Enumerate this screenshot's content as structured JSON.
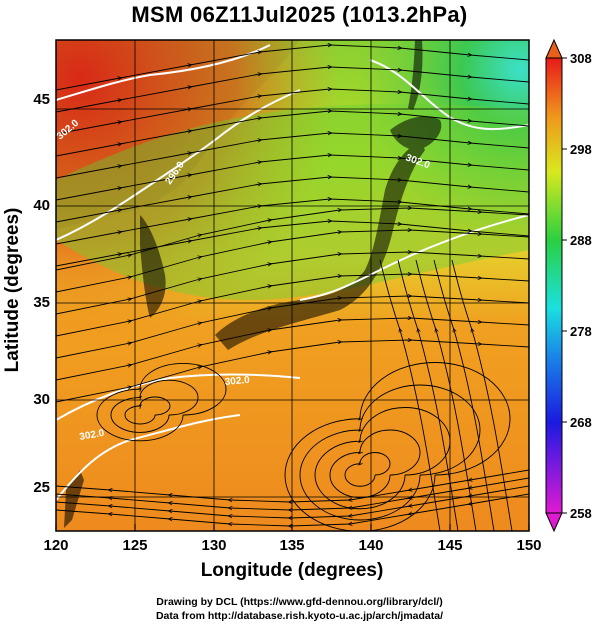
{
  "title": "MSM 06Z11Jul2025 (1013.2hPa)",
  "x_axis": {
    "label": "Longitude (degrees)",
    "ticks": [
      "120",
      "125",
      "130",
      "135",
      "140",
      "145",
      "150"
    ],
    "range": [
      120,
      150
    ]
  },
  "y_axis": {
    "label": "Latitude  (degrees)",
    "ticks": [
      "25",
      "30",
      "35",
      "40",
      "45"
    ],
    "range": [
      22.5,
      48
    ]
  },
  "colorbar": {
    "ticks": [
      "308",
      "298",
      "288",
      "278",
      "268",
      "258"
    ],
    "range": [
      258,
      308
    ]
  },
  "contour_labels": [
    "296.0",
    "302.0",
    "302.0",
    "302.0",
    "302.0"
  ],
  "credits": {
    "line1": "Drawing by DCL (https://www.gfd-dennou.org/library/dcl/)",
    "line2": "Data from http://database.rish.kyoto-u.ac.jp/arch/jmadata/"
  },
  "colors": {
    "warm": "#e8391a",
    "orange": "#f08a1c",
    "yellow": "#e6e01e",
    "green": "#4cc83c",
    "cyan": "#3ce0c8",
    "land": "#000000",
    "contour": "#ffffff"
  }
}
